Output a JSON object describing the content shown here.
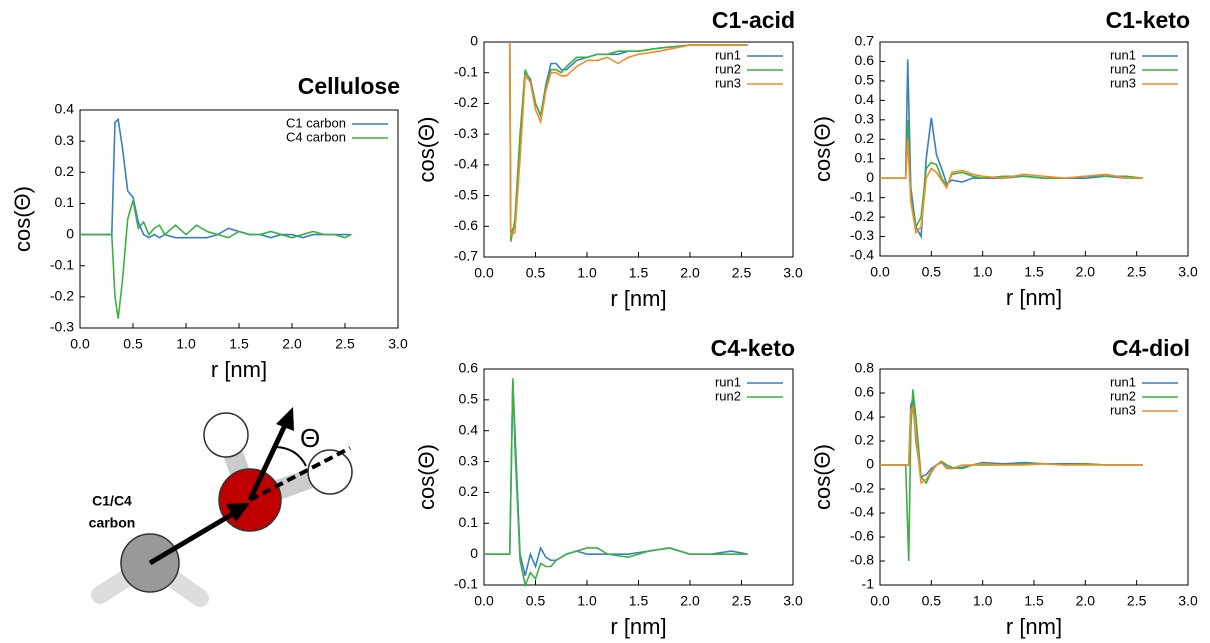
{
  "chart_data": [
    {
      "type": "line",
      "title": "Cellulose",
      "x_label": "r [nm]",
      "y_label": "cos(Θ)",
      "x": [
        0,
        0.25,
        0.3,
        0.33,
        0.36,
        0.4,
        0.45,
        0.5,
        0.55,
        0.6,
        0.65,
        0.7,
        0.75,
        0.8,
        0.9,
        1.0,
        1.1,
        1.2,
        1.3,
        1.4,
        1.5,
        1.6,
        1.7,
        1.8,
        1.9,
        2.0,
        2.1,
        2.2,
        2.3,
        2.4,
        2.5,
        2.56
      ],
      "series": [
        {
          "name": "C1 carbon",
          "color": "#3a7fc0",
          "values": [
            0,
            0,
            0,
            0.36,
            0.37,
            0.28,
            0.14,
            0.12,
            0.04,
            0.0,
            -0.01,
            0.0,
            -0.01,
            0.0,
            -0.01,
            -0.01,
            -0.01,
            -0.01,
            0.0,
            0.02,
            0.01,
            0.0,
            0.0,
            -0.01,
            0.0,
            0.0,
            -0.01,
            0.0,
            0.0,
            0.0,
            0.0,
            0.0
          ]
        },
        {
          "name": "C4 carbon",
          "color": "#3cb043",
          "values": [
            0,
            0,
            0,
            -0.2,
            -0.27,
            -0.15,
            0.05,
            0.11,
            0.02,
            0.04,
            0.0,
            0.02,
            0.03,
            0.0,
            0.03,
            0.0,
            0.03,
            0.01,
            0.0,
            -0.01,
            0.01,
            0.0,
            0.0,
            0.01,
            0.0,
            -0.01,
            0.0,
            0.01,
            0.0,
            0.0,
            -0.01,
            0.0
          ]
        }
      ],
      "xlim": [
        0,
        3
      ],
      "xticks": [
        {
          "value": 0,
          "label": "0.0"
        },
        0.5,
        {
          "value": 1,
          "label": "1.0"
        },
        1.5,
        {
          "value": 2,
          "label": "2.0"
        },
        2.5,
        {
          "value": 3,
          "label": "3.0"
        }
      ],
      "ylim": [
        -0.3,
        0.4
      ],
      "yticks": [
        0.4,
        0.3,
        0.2,
        0.1,
        0,
        -0.1,
        -0.2,
        -0.3
      ],
      "legend": "upper right"
    },
    {
      "type": "line",
      "title": "C1-acid",
      "x_label": "r [nm]",
      "y_label": "cos(Θ)",
      "x": [
        0.25,
        0.26,
        0.3,
        0.35,
        0.4,
        0.45,
        0.5,
        0.55,
        0.6,
        0.65,
        0.7,
        0.75,
        0.8,
        0.9,
        1.0,
        1.1,
        1.2,
        1.3,
        1.4,
        1.5,
        1.7,
        2.0,
        2.2,
        2.56
      ],
      "series": [
        {
          "name": "run1",
          "color": "#3a7fc0",
          "values": [
            0,
            -0.62,
            -0.6,
            -0.35,
            -0.1,
            -0.12,
            -0.2,
            -0.24,
            -0.14,
            -0.07,
            -0.07,
            -0.09,
            -0.09,
            -0.06,
            -0.05,
            -0.04,
            -0.04,
            -0.04,
            -0.03,
            -0.03,
            -0.02,
            -0.01,
            -0.01,
            -0.01
          ]
        },
        {
          "name": "run2",
          "color": "#3cb043",
          "values": [
            0,
            -0.65,
            -0.58,
            -0.3,
            -0.09,
            -0.13,
            -0.2,
            -0.24,
            -0.15,
            -0.09,
            -0.09,
            -0.1,
            -0.08,
            -0.05,
            -0.05,
            -0.04,
            -0.04,
            -0.03,
            -0.03,
            -0.03,
            -0.02,
            -0.01,
            -0.01,
            -0.01
          ]
        },
        {
          "name": "run3",
          "color": "#f28c28",
          "values": [
            0,
            -0.63,
            -0.62,
            -0.38,
            -0.11,
            -0.13,
            -0.22,
            -0.26,
            -0.16,
            -0.1,
            -0.1,
            -0.11,
            -0.11,
            -0.08,
            -0.06,
            -0.06,
            -0.05,
            -0.07,
            -0.05,
            -0.04,
            -0.03,
            -0.01,
            -0.01,
            -0.01
          ]
        }
      ],
      "xlim": [
        0,
        3
      ],
      "xticks": [
        {
          "value": 0,
          "label": "0.0"
        },
        0.5,
        {
          "value": 1,
          "label": "1.0"
        },
        1.5,
        {
          "value": 2,
          "label": "2.0"
        },
        2.5,
        {
          "value": 3,
          "label": "3.0"
        }
      ],
      "ylim": [
        -0.7,
        0
      ],
      "yticks": [
        0,
        -0.1,
        -0.2,
        -0.3,
        -0.4,
        -0.5,
        -0.6,
        -0.7
      ],
      "legend": "upper right"
    },
    {
      "type": "line",
      "title": "C1-keto",
      "x_label": "r [nm]",
      "y_label": "cos(Θ)",
      "x": [
        0,
        0.25,
        0.27,
        0.3,
        0.35,
        0.4,
        0.45,
        0.5,
        0.55,
        0.6,
        0.65,
        0.7,
        0.8,
        0.9,
        1.0,
        1.2,
        1.4,
        1.6,
        1.8,
        2.0,
        2.2,
        2.4,
        2.56
      ],
      "series": [
        {
          "name": "run1",
          "color": "#3a7fc0",
          "values": [
            0,
            0,
            0.61,
            -0.05,
            -0.25,
            -0.3,
            0.1,
            0.31,
            0.12,
            0.05,
            -0.03,
            -0.01,
            -0.02,
            0.0,
            0.0,
            0.0,
            0.01,
            0.0,
            0.0,
            0.0,
            0.01,
            0.0,
            0.0
          ]
        },
        {
          "name": "run2",
          "color": "#3cb043",
          "values": [
            0,
            0,
            0.3,
            -0.1,
            -0.25,
            -0.2,
            0.05,
            0.08,
            0.07,
            0.0,
            -0.04,
            0.02,
            0.03,
            0.01,
            0.0,
            0.01,
            0.01,
            0.0,
            0.0,
            0.01,
            0.01,
            0.01,
            0.0
          ]
        },
        {
          "name": "run3",
          "color": "#f28c28",
          "values": [
            0,
            0,
            0.2,
            -0.12,
            -0.28,
            -0.25,
            0.0,
            0.05,
            0.03,
            -0.01,
            -0.05,
            0.03,
            0.04,
            0.02,
            0.01,
            0.0,
            0.02,
            0.01,
            0.0,
            0.01,
            0.02,
            0.0,
            0.0
          ]
        }
      ],
      "xlim": [
        0,
        3
      ],
      "xticks": [
        {
          "value": 0,
          "label": "0.0"
        },
        0.5,
        {
          "value": 1,
          "label": "1.0"
        },
        1.5,
        {
          "value": 2,
          "label": "2.0"
        },
        2.5,
        {
          "value": 3,
          "label": "3.0"
        }
      ],
      "ylim": [
        -0.4,
        0.7
      ],
      "yticks": [
        0.7,
        0.6,
        0.5,
        0.4,
        0.3,
        0.2,
        0.1,
        0,
        -0.1,
        -0.2,
        -0.3,
        -0.4
      ],
      "legend": "upper right"
    },
    {
      "type": "line",
      "title": "C4-keto",
      "x_label": "r [nm]",
      "y_label": "cos(Θ)",
      "x": [
        0,
        0.25,
        0.28,
        0.3,
        0.35,
        0.4,
        0.45,
        0.5,
        0.55,
        0.6,
        0.65,
        0.7,
        0.8,
        0.9,
        1.0,
        1.1,
        1.2,
        1.4,
        1.6,
        1.8,
        2.0,
        2.2,
        2.4,
        2.56
      ],
      "series": [
        {
          "name": "run1",
          "color": "#3a7fc0",
          "values": [
            0,
            0,
            0.56,
            0.4,
            0.0,
            -0.07,
            0.0,
            -0.04,
            0.02,
            -0.01,
            -0.02,
            -0.02,
            0.0,
            0.01,
            0.0,
            0.0,
            0.0,
            0.0,
            0.01,
            0.02,
            0.0,
            0.0,
            0.01,
            0.0
          ]
        },
        {
          "name": "run2",
          "color": "#3cb043",
          "values": [
            0,
            0,
            0.57,
            0.35,
            -0.02,
            -0.1,
            -0.06,
            -0.08,
            -0.03,
            -0.04,
            -0.04,
            -0.02,
            0.0,
            0.01,
            0.02,
            0.02,
            0.0,
            -0.01,
            0.01,
            0.02,
            0.0,
            0.0,
            0.0,
            0.0
          ]
        }
      ],
      "xlim": [
        0,
        3
      ],
      "xticks": [
        {
          "value": 0,
          "label": "0.0"
        },
        0.5,
        {
          "value": 1,
          "label": "1.0"
        },
        1.5,
        {
          "value": 2,
          "label": "2.0"
        },
        2.5,
        {
          "value": 3,
          "label": "3.0"
        }
      ],
      "ylim": [
        -0.1,
        0.6
      ],
      "yticks": [
        0.6,
        0.5,
        0.4,
        0.3,
        0.2,
        0.1,
        0,
        -0.1
      ],
      "legend": "upper right"
    },
    {
      "type": "line",
      "title": "C4-diol",
      "x_label": "r [nm]",
      "y_label": "cos(Θ)",
      "x": [
        0,
        0.25,
        0.28,
        0.3,
        0.32,
        0.35,
        0.4,
        0.45,
        0.5,
        0.55,
        0.6,
        0.65,
        0.7,
        0.8,
        0.9,
        1.0,
        1.2,
        1.4,
        1.6,
        1.8,
        2.0,
        2.2,
        2.4,
        2.56
      ],
      "series": [
        {
          "name": "run1",
          "color": "#3a7fc0",
          "values": [
            0,
            0,
            0,
            0.5,
            0.55,
            0.2,
            -0.1,
            -0.08,
            -0.03,
            0.0,
            0.02,
            -0.02,
            -0.03,
            -0.02,
            0.0,
            0.02,
            0.01,
            0.02,
            0.01,
            0.01,
            0.01,
            0.0,
            0.0,
            0.0
          ]
        },
        {
          "name": "run2",
          "color": "#3cb043",
          "values": [
            0,
            0,
            -0.8,
            0.3,
            0.63,
            0.4,
            -0.1,
            -0.15,
            -0.06,
            0.0,
            0.03,
            0.0,
            -0.02,
            -0.03,
            0.0,
            0.0,
            0.0,
            0.01,
            0.01,
            0.0,
            0.01,
            0.0,
            0.0,
            0.0
          ]
        },
        {
          "name": "run3",
          "color": "#f28c28",
          "values": [
            0,
            0,
            0,
            0.45,
            0.48,
            0.25,
            -0.15,
            -0.12,
            -0.05,
            0.0,
            0.02,
            -0.03,
            -0.03,
            0.0,
            0.0,
            0.01,
            0.0,
            0.0,
            0.01,
            0.0,
            0.0,
            0.0,
            0.0,
            0.0
          ]
        }
      ],
      "xlim": [
        0,
        3
      ],
      "xticks": [
        {
          "value": 0,
          "label": "0.0"
        },
        0.5,
        {
          "value": 1,
          "label": "1.0"
        },
        1.5,
        {
          "value": 2,
          "label": "2.0"
        },
        2.5,
        {
          "value": 3,
          "label": "3.0"
        }
      ],
      "ylim": [
        -1,
        0.8
      ],
      "yticks": [
        0.8,
        0.6,
        0.4,
        0.2,
        0,
        -0.2,
        -0.4,
        -0.6,
        -0.8,
        -1
      ],
      "legend": "upper right"
    }
  ],
  "diagram": {
    "carbon_label": [
      "C1/C4",
      "carbon"
    ],
    "angle_label": "Θ"
  }
}
